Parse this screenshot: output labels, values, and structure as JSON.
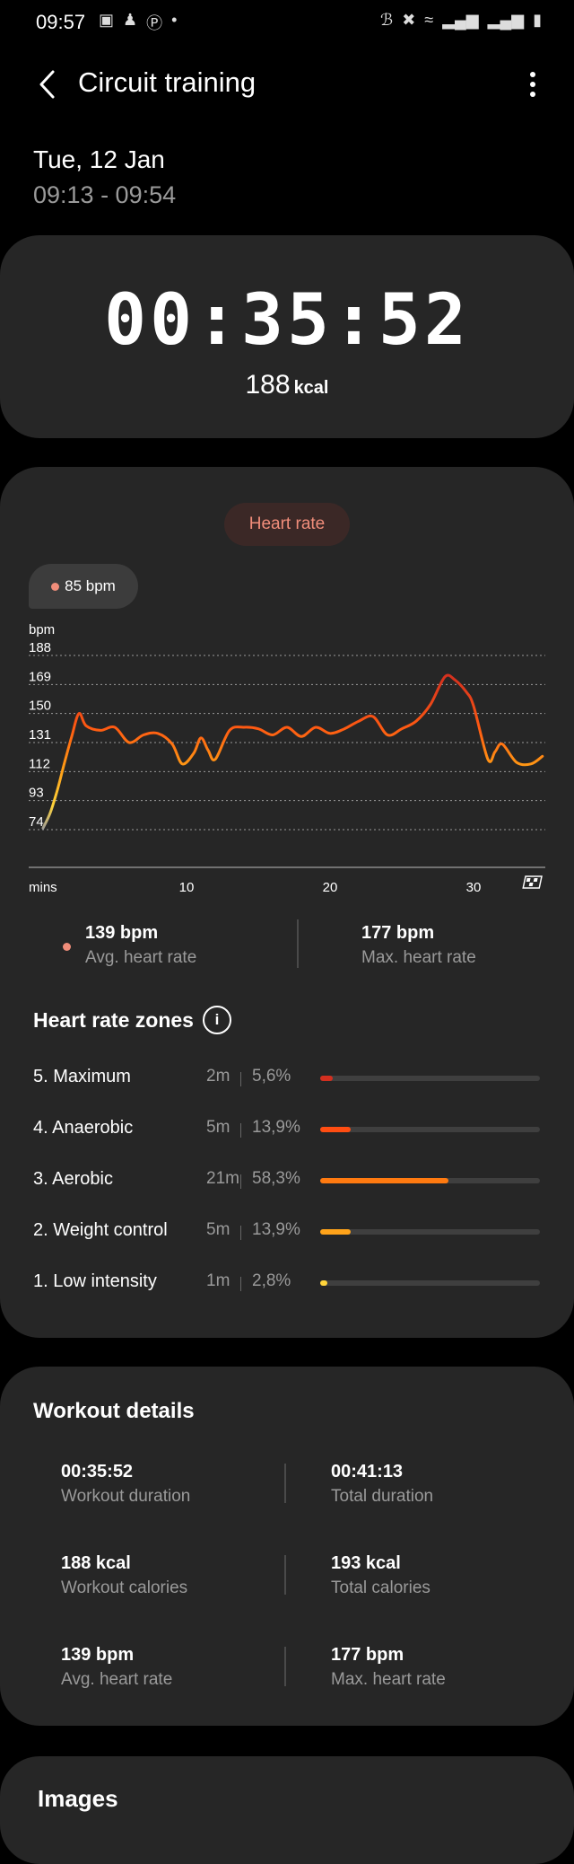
{
  "status_bar": {
    "time": "09:57",
    "left_icons": [
      "image-icon",
      "accessibility-icon",
      "pinterest-icon",
      "dot-icon"
    ],
    "right_icons": [
      "bluetooth-icon",
      "mute-icon",
      "wifi-icon",
      "signal-icon",
      "signal-icon",
      "battery-icon"
    ]
  },
  "header": {
    "title": "Circuit training"
  },
  "session": {
    "date": "Tue, 12 Jan",
    "time_range": "09:13 - 09:54"
  },
  "timer": {
    "duration": "00:35:52",
    "kcal_value": "188",
    "kcal_unit": "kcal"
  },
  "heart_rate": {
    "chip_label": "Heart rate",
    "tooltip": "85 bpm",
    "avg_value": "139 bpm",
    "avg_label": "Avg. heart rate",
    "max_value": "177 bpm",
    "max_label": "Max. heart rate"
  },
  "chart_data": {
    "type": "line",
    "title": "",
    "ylabel": "bpm",
    "xlabel": "mins",
    "y_ticks": [
      "188",
      "169",
      "150",
      "131",
      "112",
      "93",
      "74"
    ],
    "x_ticks": [
      10,
      20,
      30
    ],
    "x_tick_labels": [
      "10",
      "20",
      "30"
    ],
    "ylim": [
      74,
      188
    ],
    "xlim": [
      0,
      35
    ],
    "grid": true,
    "x": [
      0,
      0.5,
      1,
      1.5,
      2,
      2.5,
      3,
      4,
      5,
      6,
      7,
      8,
      9,
      9.7,
      10.5,
      11,
      11.5,
      12,
      13,
      14,
      15,
      16,
      17,
      18,
      19,
      20,
      21,
      22,
      23,
      24,
      25,
      26,
      27,
      28,
      28.7,
      29.5,
      30,
      31,
      31.5,
      32,
      33,
      34,
      34.8
    ],
    "y": [
      75,
      85,
      100,
      118,
      135,
      150,
      142,
      139,
      141,
      131,
      136,
      137,
      130,
      117,
      124,
      134,
      126,
      120,
      139,
      141,
      140,
      136,
      141,
      135,
      141,
      137,
      140,
      145,
      148,
      136,
      140,
      145,
      156,
      174,
      172,
      164,
      155,
      120,
      125,
      130,
      118,
      117,
      122
    ],
    "series": [
      {
        "values_in": "y"
      }
    ]
  },
  "zones": {
    "title": "Heart rate zones",
    "items": [
      {
        "name": "5. Maximum",
        "duration": "2m",
        "percent": "5,6%",
        "fraction": 0.056,
        "color": "#d32f1f"
      },
      {
        "name": "4. Anaerobic",
        "duration": "5m",
        "percent": "13,9%",
        "fraction": 0.139,
        "color": "#ff4d12"
      },
      {
        "name": "3. Aerobic",
        "duration": "21m",
        "percent": "58,3%",
        "fraction": 0.583,
        "color": "#ff7a10"
      },
      {
        "name": "2. Weight control",
        "duration": "5m",
        "percent": "13,9%",
        "fraction": 0.139,
        "color": "#ffa31a"
      },
      {
        "name": "1. Low intensity",
        "duration": "1m",
        "percent": "2,8%",
        "fraction": 0.028,
        "color": "#ffd43b"
      }
    ]
  },
  "details": {
    "title": "Workout details",
    "rows": [
      {
        "left_value": "00:35:52",
        "left_label": "Workout duration",
        "right_value": "00:41:13",
        "right_label": "Total duration"
      },
      {
        "left_value": "188 kcal",
        "left_label": "Workout calories",
        "right_value": "193 kcal",
        "right_label": "Total calories"
      },
      {
        "left_value": "139 bpm",
        "left_label": "Avg. heart rate",
        "right_value": "177 bpm",
        "right_label": "Max. heart rate"
      }
    ]
  },
  "images_section": {
    "title": "Images"
  },
  "colors": {
    "accent": "#f08d7a",
    "line_high": "#d32f1f",
    "line_mid": "#ff9a14",
    "line_low": "#ffd43b"
  }
}
